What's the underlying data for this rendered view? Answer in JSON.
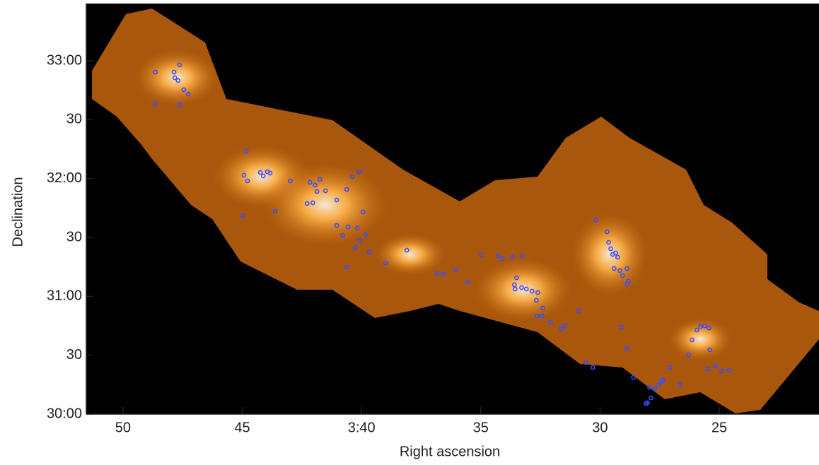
{
  "chart_data": {
    "type": "scatter",
    "color": "#3a4cff",
    "x_label": "Right ascension",
    "y_label": "Declination",
    "xlim": [
      51.54,
      20.82
    ],
    "ylim": [
      30,
      33.486
    ],
    "xticks": [
      50,
      45,
      {
        "value": 40,
        "label": "3:40"
      },
      35,
      30,
      25
    ],
    "yticks": [
      {
        "value": 30,
        "label": "30:00"
      },
      {
        "value": 30.5,
        "label": "30"
      },
      {
        "value": 31,
        "label": "31:00"
      },
      {
        "value": 31.5,
        "label": "30"
      },
      {
        "value": 32,
        "label": "32:00"
      },
      {
        "value": 32.5,
        "label": "30"
      },
      {
        "value": 33,
        "label": "33:00"
      }
    ],
    "x": [
      48.64,
      47.86,
      47.63,
      47.83,
      47.69,
      47.45,
      47.27,
      48.66,
      47.63,
      44.84,
      44.93,
      44.78,
      44.24,
      44.12,
      43.95,
      43.83,
      42.99,
      42.16,
      41.95,
      41.75,
      41.87,
      41.51,
      42.28,
      42.04,
      43.62,
      44.99,
      41.04,
      40.62,
      40.39,
      40.09,
      41.04,
      40.56,
      39.94,
      40.18,
      40.8,
      39.82,
      40.06,
      40.27,
      39.67,
      38.99,
      38.1,
      40.62,
      36.83,
      36.56,
      36.05,
      35.55,
      34.99,
      34.27,
      34.09,
      33.68,
      33.26,
      33.5,
      33.59,
      33.56,
      33.29,
      33.09,
      32.85,
      32.61,
      32.67,
      32.4,
      32.64,
      32.43,
      32.08,
      31.63,
      31.48,
      30.89,
      30.18,
      29.7,
      29.64,
      29.55,
      29.47,
      29.35,
      29.26,
      29.41,
      29.17,
      29.05,
      28.87,
      28.87,
      28.81,
      29.11,
      28.87,
      30.59,
      30.3,
      28.6,
      28.01,
      27.86,
      27.71,
      27.56,
      27.41,
      27.92,
      28.07,
      27.36,
      27.06,
      26.65,
      26.29,
      26.14,
      25.94,
      25.79,
      25.61,
      25.43,
      25.4,
      25.49,
      25.16,
      24.9,
      24.6
    ],
    "values": [
      32.904,
      32.904,
      32.964,
      32.856,
      32.832,
      32.754,
      32.718,
      32.634,
      32.628,
      32.232,
      32.028,
      31.98,
      32.052,
      32.022,
      32.058,
      32.046,
      31.98,
      31.968,
      31.944,
      31.992,
      31.89,
      31.896,
      31.788,
      31.794,
      31.722,
      31.686,
      31.818,
      31.908,
      32.016,
      32.058,
      31.602,
      31.59,
      31.716,
      31.578,
      31.518,
      31.524,
      31.476,
      31.416,
      31.374,
      31.284,
      31.392,
      31.248,
      31.194,
      31.188,
      31.224,
      31.122,
      31.35,
      31.344,
      31.32,
      31.332,
      31.344,
      31.158,
      31.098,
      31.062,
      31.074,
      31.062,
      31.044,
      31.032,
      30.966,
      30.9,
      30.834,
      30.834,
      30.78,
      30.726,
      30.75,
      30.876,
      31.65,
      31.548,
      31.458,
      31.404,
      31.356,
      31.368,
      31.332,
      31.236,
      31.218,
      31.176,
      31.236,
      31.104,
      31.128,
      30.738,
      30.558,
      30.438,
      30.396,
      30.312,
      30.096,
      30.138,
      30.216,
      30.246,
      30.276,
      30.228,
      30.09,
      30.288,
      30.396,
      30.252,
      30.504,
      30.63,
      30.714,
      30.744,
      30.75,
      30.732,
      30.546,
      30.384,
      30.408,
      30.366,
      30.372
    ]
  }
}
